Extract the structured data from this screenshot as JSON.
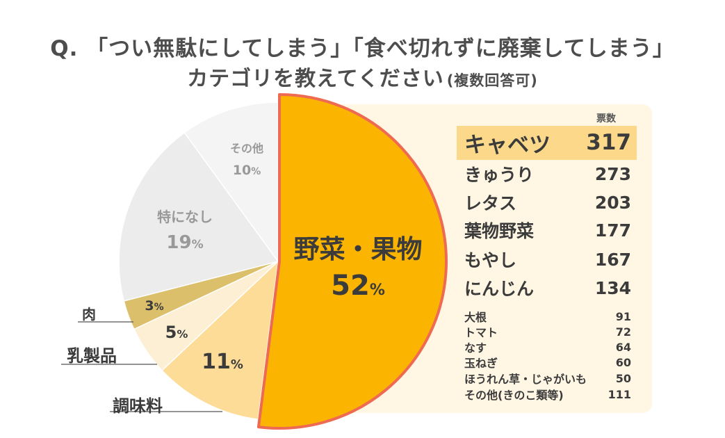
{
  "title": {
    "line1": "Q. 「つい無駄にしてしまう」「食べ切れずに廃棄してしまう」",
    "line2": "カテゴリを教えてください",
    "note": "(複数回答可)"
  },
  "chart_data": {
    "type": "pie",
    "title": "Q. 「つい無駄にしてしまう」「食べ切れずに廃棄してしまう」カテゴリを教えてください (複数回答可)",
    "unit": "%",
    "slices": [
      {
        "name": "野菜・果物",
        "value": 52,
        "color": "#fbb400"
      },
      {
        "name": "調味料",
        "value": 11,
        "color": "#fcdc97"
      },
      {
        "name": "乳製品",
        "value": 5,
        "color": "#fdefd3"
      },
      {
        "name": "肉",
        "value": 3,
        "color": "#dcbf6a"
      },
      {
        "name": "特になし",
        "value": 19,
        "color": "#ececec"
      },
      {
        "name": "その他",
        "value": 10,
        "color": "#f4f4f4"
      }
    ],
    "highlight_border_color": "#ee6a52"
  },
  "pie_labels": {
    "vegetables": {
      "name": "野菜・果物",
      "pct": "52"
    },
    "seasoning": {
      "name": "調味料",
      "pct": "11"
    },
    "dairy": {
      "name": "乳製品",
      "pct": "5"
    },
    "meat": {
      "name": "肉",
      "pct": "3"
    },
    "none": {
      "name": "特になし",
      "pct": "19"
    },
    "other": {
      "name": "その他",
      "pct": "10"
    },
    "pct_sign": "%"
  },
  "breakdown": {
    "header": "票数",
    "top_items": [
      {
        "name": "キャベツ",
        "votes": "317"
      },
      {
        "name": "きゅうり",
        "votes": "273"
      },
      {
        "name": "レタス",
        "votes": "203"
      },
      {
        "name": "葉物野菜",
        "votes": "177"
      },
      {
        "name": "もやし",
        "votes": "167"
      },
      {
        "name": "にんじん",
        "votes": "134"
      }
    ],
    "small_items": [
      {
        "name": "大根",
        "votes": "91"
      },
      {
        "name": "トマト",
        "votes": "72"
      },
      {
        "name": "なす",
        "votes": "64"
      },
      {
        "name": "玉ねぎ",
        "votes": "60"
      },
      {
        "name": "ほうれん草・じゃがいも",
        "votes": "50"
      },
      {
        "name": "その他(きのこ類等)",
        "votes": "111"
      }
    ]
  }
}
